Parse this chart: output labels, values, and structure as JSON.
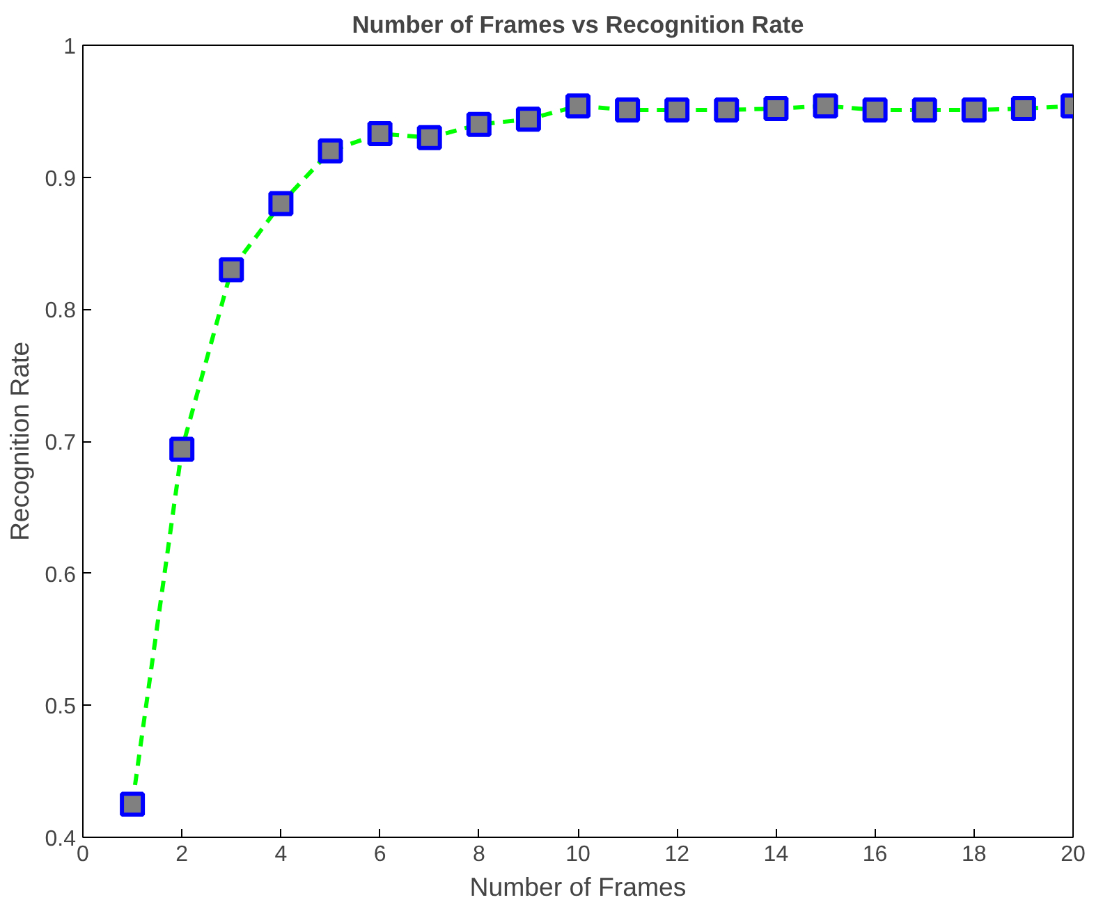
{
  "chart_data": {
    "type": "line",
    "title": "Number of Frames vs Recognition Rate",
    "xlabel": "Number of Frames",
    "ylabel": "Recognition Rate",
    "x": [
      1,
      2,
      3,
      4,
      5,
      6,
      7,
      8,
      9,
      10,
      11,
      12,
      13,
      14,
      15,
      16,
      17,
      18,
      19,
      20
    ],
    "series": [
      {
        "color": "#00ff00",
        "values": [
          0.425,
          0.694,
          0.83,
          0.88,
          0.92,
          0.933,
          0.93,
          0.94,
          0.944,
          0.954,
          0.951,
          0.951,
          0.951,
          0.952,
          0.954,
          0.951,
          0.951,
          0.951,
          0.952,
          0.954
        ]
      }
    ],
    "xlim": [
      0,
      20
    ],
    "ylim": [
      0.4,
      1
    ],
    "xticks": [
      0,
      2,
      4,
      6,
      8,
      10,
      12,
      14,
      16,
      18,
      20
    ],
    "yticks": [
      0.4,
      0.5,
      0.6,
      0.7,
      0.8,
      0.9,
      1
    ],
    "grid": false,
    "marker": "square",
    "line_style": "dashed"
  }
}
